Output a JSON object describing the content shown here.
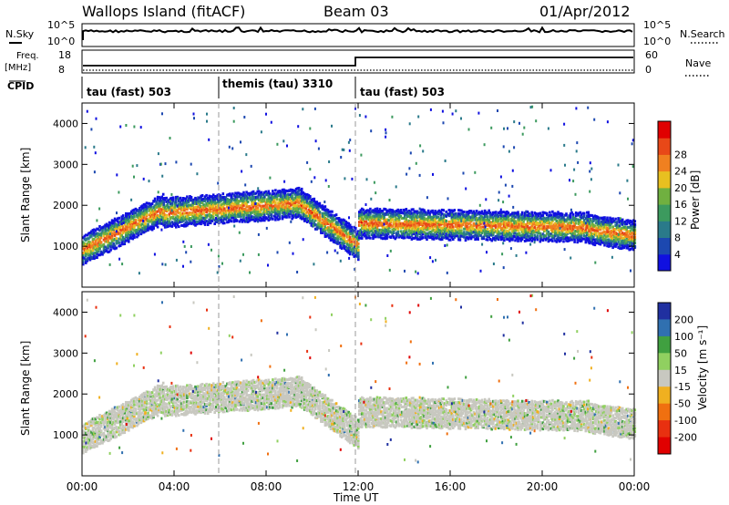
{
  "header": {
    "site": "Wallops Island (fitACF)",
    "beam": "Beam 03",
    "date": "01/Apr/2012"
  },
  "top_panels": {
    "nsky_label": "N.Sky",
    "nsky_ticks": [
      "10^5",
      "10^0"
    ],
    "nsearch_label": "N.Search",
    "nsearch_ticks": [
      "10^5",
      "10^0"
    ],
    "freq_label": "Freq.",
    "freq_unit": "[MHz]",
    "freq_ticks": [
      "18",
      "8"
    ],
    "nave_label": "Nave",
    "nave_ticks": [
      "60",
      "0"
    ],
    "cpid_label": "CPID",
    "cpid_segments": [
      {
        "start_hour": 0,
        "end_hour": 6,
        "label": "tau (fast) 503"
      },
      {
        "start_hour": 6,
        "end_hour": 12,
        "label": "themis (tau) 3310"
      },
      {
        "start_hour": 12,
        "end_hour": 24,
        "label": "tau (fast) 503"
      }
    ]
  },
  "chart_data": [
    {
      "type": "heatmap",
      "name": "power",
      "ylabel": "Slant Range [km]",
      "xlabel": "Time UT",
      "xlim": [
        0,
        24
      ],
      "ylim": [
        0,
        4500
      ],
      "yticks": [
        "1000",
        "2000",
        "3000",
        "4000"
      ],
      "colorbar": {
        "label": "Power [dB]",
        "ticks": [
          "4",
          "8",
          "12",
          "16",
          "20",
          "24",
          "28"
        ],
        "colors": [
          "#1010e0",
          "#1c48b0",
          "#2a7a8a",
          "#3c9a5e",
          "#70b040",
          "#e8c020",
          "#f08020",
          "#e84818",
          "#e00000"
        ]
      },
      "echo_bands": [
        {
          "start_hour": 0.0,
          "end_hour": 3.5,
          "range_start_km": 900,
          "range_end_km": 1900
        },
        {
          "start_hour": 3.5,
          "end_hour": 9.5,
          "range_start_km": 1800,
          "range_end_km": 2050
        },
        {
          "start_hour": 9.5,
          "end_hour": 12.0,
          "range_start_km": 2000,
          "range_end_km": 1000
        },
        {
          "start_hour": 12.0,
          "end_hour": 22.0,
          "range_start_km": 1550,
          "range_end_km": 1450
        },
        {
          "start_hour": 22.0,
          "end_hour": 24.0,
          "range_start_km": 1400,
          "range_end_km": 1250
        }
      ]
    },
    {
      "type": "heatmap",
      "name": "velocity",
      "ylabel": "Slant Range [km]",
      "xlabel": "Time UT",
      "xlim": [
        0,
        24
      ],
      "ylim": [
        0,
        4500
      ],
      "yticks": [
        "1000",
        "2000",
        "3000",
        "4000"
      ],
      "colorbar": {
        "label": "Velocity [m s⁻¹]",
        "ticks": [
          "200",
          "100",
          "50",
          "15",
          "-15",
          "-50",
          "-100",
          "-200"
        ],
        "colors": [
          "#2030a0",
          "#3070b0",
          "#40a040",
          "#90d060",
          "#c8c8c0",
          "#f0b020",
          "#f07010",
          "#e83010",
          "#e00000"
        ]
      }
    }
  ],
  "time_axis": {
    "label": "Time UT",
    "ticks": [
      "00:00",
      "04:00",
      "08:00",
      "12:00",
      "16:00",
      "20:00",
      "00:00"
    ]
  }
}
